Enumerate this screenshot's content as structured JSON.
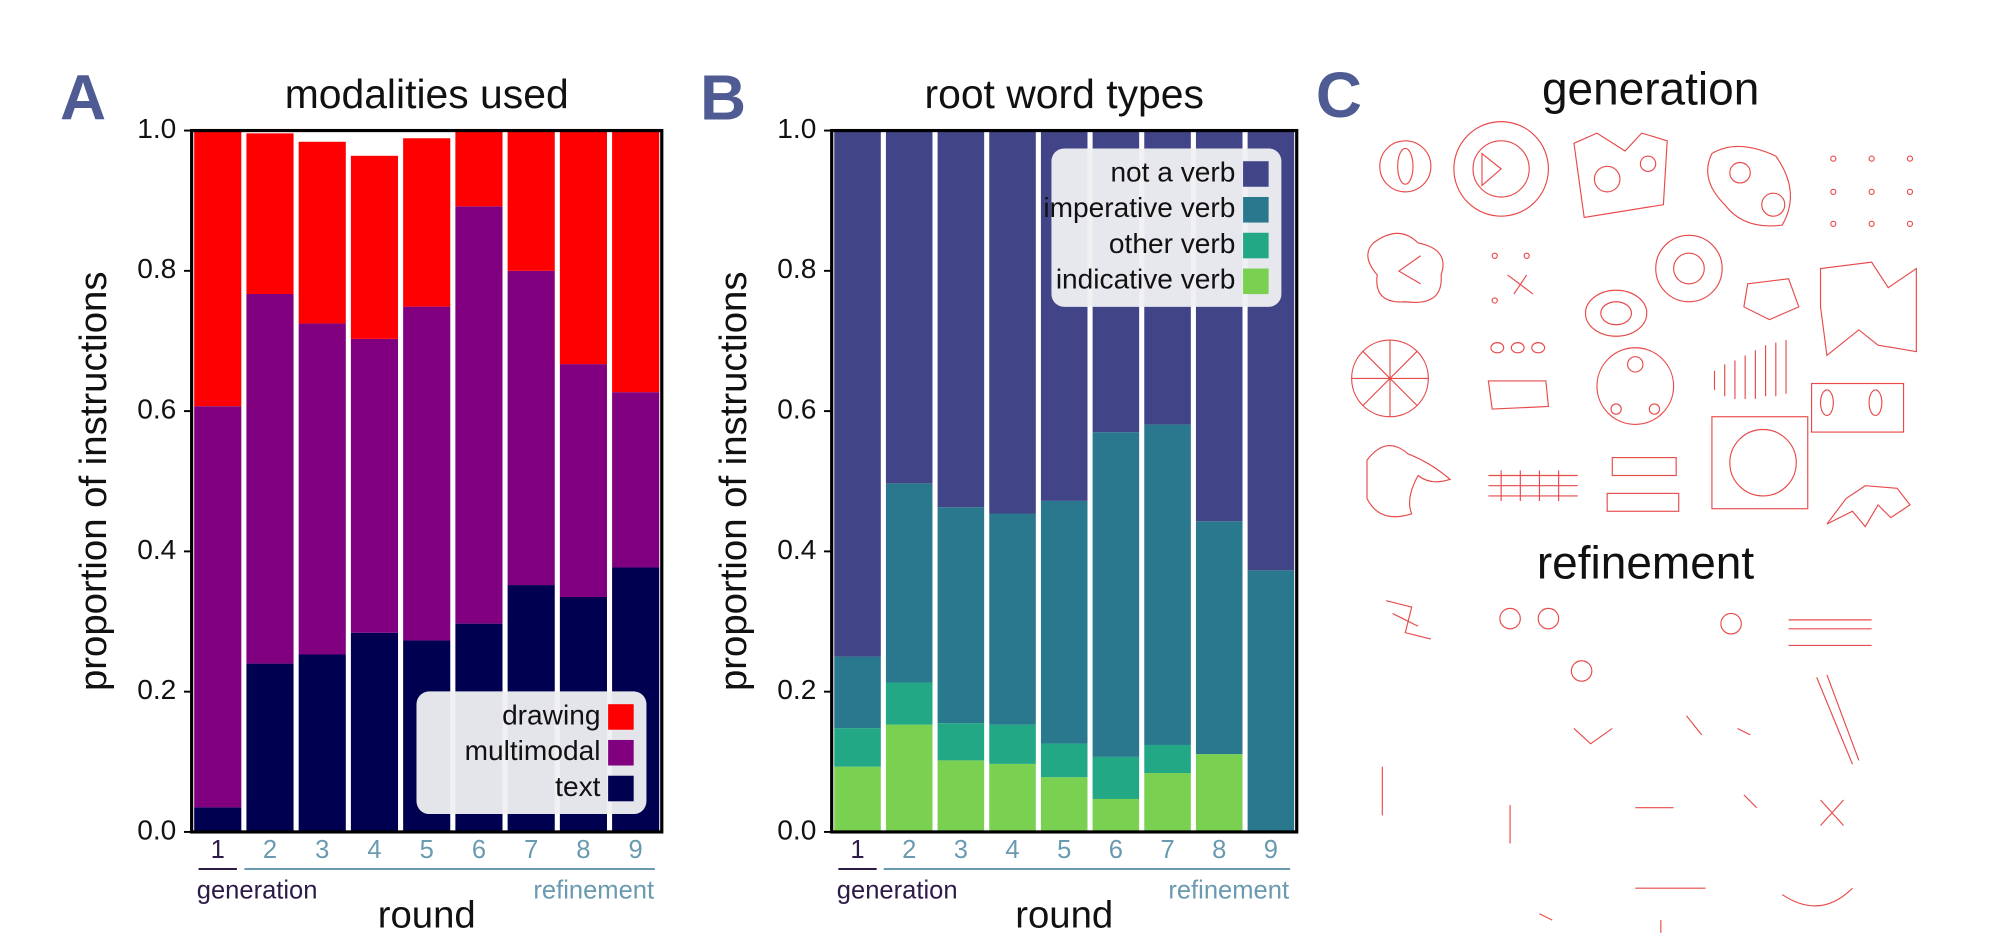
{
  "chart_data": [
    {
      "type": "stacked_bar",
      "panel_label": "A",
      "title": "modalities used",
      "ylabel": "proportion of instructions",
      "xlabel": "round",
      "group_labels": [
        "generation",
        "refinement"
      ],
      "categories": [
        "1",
        "2",
        "3",
        "4",
        "5",
        "6",
        "7",
        "8",
        "9"
      ],
      "series": [
        {
          "name": "text",
          "color": "#000050",
          "values": [
            0.035,
            0.24,
            0.253,
            0.284,
            0.273,
            0.297,
            0.352,
            0.335,
            0.377
          ]
        },
        {
          "name": "multimodal",
          "color": "#800080",
          "values": [
            0.572,
            0.527,
            0.472,
            0.419,
            0.476,
            0.595,
            0.448,
            0.332,
            0.25
          ]
        },
        {
          "name": "drawing",
          "color": "#ff0000",
          "values": [
            0.393,
            0.229,
            0.259,
            0.261,
            0.24,
            0.108,
            0.2,
            0.333,
            0.373
          ]
        }
      ],
      "ylim": [
        0,
        1
      ],
      "yticks": [
        {
          "value": 0,
          "label": "0.0"
        },
        {
          "value": 0.2,
          "label": "0.2"
        },
        {
          "value": 0.4,
          "label": "0.4"
        },
        {
          "value": 0.6,
          "label": "0.6"
        },
        {
          "value": 0.8,
          "label": "0.8"
        },
        {
          "value": 1,
          "label": "1.0"
        }
      ],
      "legend": "lower right"
    },
    {
      "type": "stacked_bar",
      "panel_label": "B",
      "title": "root word types",
      "ylabel": "proportion of instructions",
      "xlabel": "round",
      "group_labels": [
        "generation",
        "refinement"
      ],
      "categories": [
        "1",
        "2",
        "3",
        "4",
        "5",
        "6",
        "7",
        "8",
        "9"
      ],
      "series": [
        {
          "name": "indicative verb",
          "color": "#7ad151",
          "values": [
            0.093,
            0.153,
            0.102,
            0.097,
            0.078,
            0.047,
            0.084,
            0.111,
            0
          ]
        },
        {
          "name": "other verb",
          "color": "#22a884",
          "values": [
            0.055,
            0.06,
            0.053,
            0.056,
            0.048,
            0.06,
            0.04,
            0,
            0
          ]
        },
        {
          "name": "imperative verb",
          "color": "#2a788e",
          "values": [
            0.102,
            0.284,
            0.308,
            0.301,
            0.346,
            0.463,
            0.457,
            0.332,
            0.373
          ]
        },
        {
          "name": "not a verb",
          "color": "#414487",
          "values": [
            0.75,
            0.503,
            0.537,
            0.546,
            0.528,
            0.43,
            0.419,
            0.557,
            0.627
          ]
        }
      ],
      "ylim": [
        0,
        1
      ],
      "yticks": [
        {
          "value": 0,
          "label": "0.0"
        },
        {
          "value": 0.2,
          "label": "0.2"
        },
        {
          "value": 0.4,
          "label": "0.4"
        },
        {
          "value": 0.6,
          "label": "0.6"
        },
        {
          "value": 0.8,
          "label": "0.8"
        },
        {
          "value": 1,
          "label": "1.0"
        }
      ],
      "legend": "upper right"
    }
  ],
  "sketches": {
    "panel_label": "C",
    "titles": [
      "generation",
      "refinement"
    ]
  }
}
